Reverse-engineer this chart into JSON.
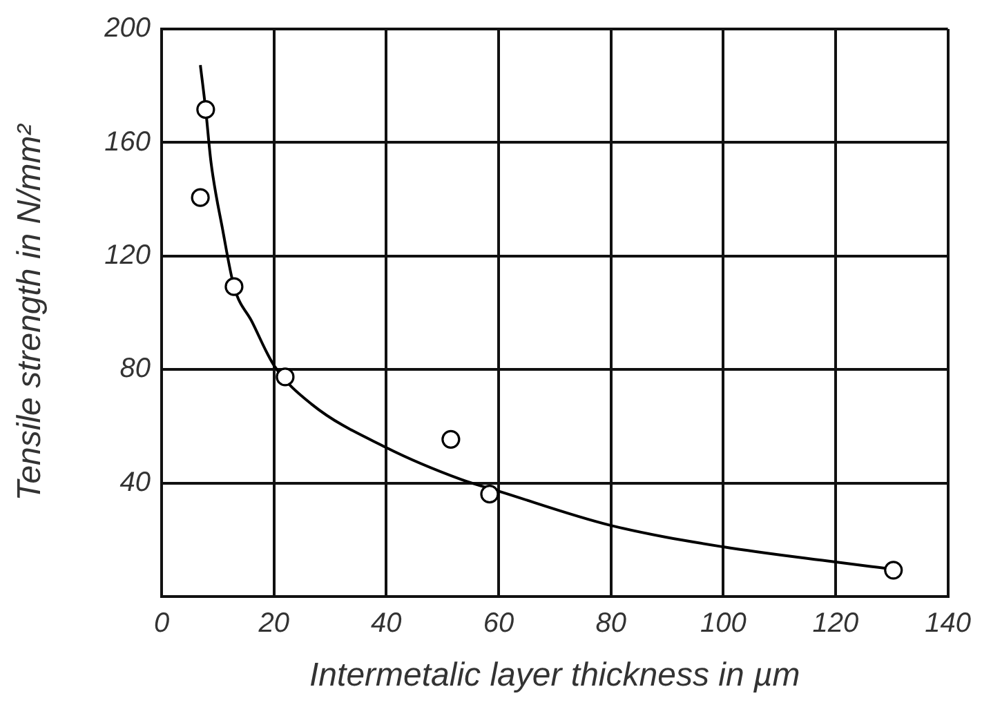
{
  "chart_data": {
    "type": "scatter",
    "xlabel": "Intermetalic layer thickness in µm",
    "ylabel": "Tensile strength in N/mm²",
    "xlim": [
      0,
      140
    ],
    "xticks": [
      0,
      20,
      40,
      60,
      80,
      100,
      120,
      140
    ],
    "ylim": [
      0,
      200
    ],
    "yticks": [
      {
        "value": 0,
        "label": null
      },
      40,
      80,
      120,
      160,
      200
    ],
    "grid": true,
    "legend": false,
    "series": [
      {
        "marker": "circle",
        "color": "#000000",
        "x": [
          7.85,
          6.9,
          12.9,
          22.0,
          51.5,
          58.4,
          130.3
        ],
        "values": [
          171.6,
          140.6,
          109.2,
          77.4,
          55.4,
          36.1,
          9.3
        ]
      },
      {
        "type": "line",
        "marker": "none",
        "line_style": "solid",
        "color": "#000000",
        "x": [
          6.9,
          7.85,
          8.8,
          10.9,
          12.9,
          16.1,
          20,
          26.7,
          40,
          53.4,
          59.9,
          79.9,
          100,
          119.8,
          129.5
        ],
        "values": [
          187.3,
          171.6,
          153,
          129,
          109.2,
          96.8,
          81.5,
          67.8,
          52.5,
          41.2,
          37.2,
          25.1,
          17.5,
          12.2,
          9.8
        ]
      }
    ]
  }
}
